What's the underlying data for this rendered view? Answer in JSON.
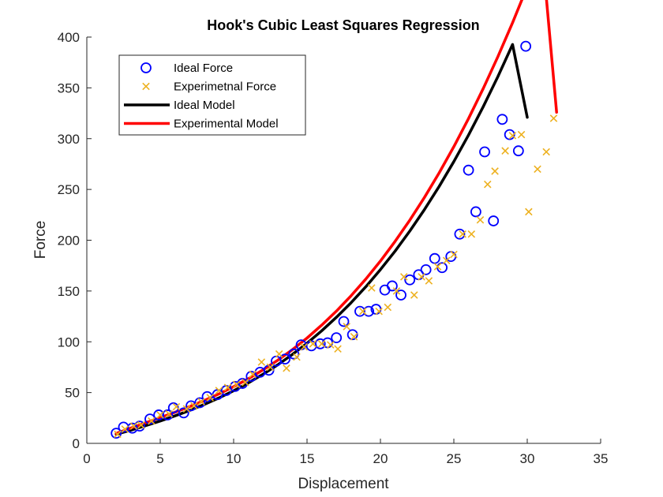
{
  "chart_data": {
    "type": "scatter",
    "title": "Hook's Cubic Least Squares Regression",
    "xlabel": "Displacement",
    "ylabel": "Force",
    "xlim": [
      0,
      35
    ],
    "ylim": [
      0,
      400
    ],
    "xticks": [
      0,
      5,
      10,
      15,
      20,
      25,
      30,
      35
    ],
    "yticks": [
      0,
      50,
      100,
      150,
      200,
      250,
      300,
      350,
      400
    ],
    "grid": false,
    "legend_position": "top-left",
    "series": [
      {
        "name": "Ideal Force",
        "kind": "markers",
        "marker": "circle",
        "color": "#0000ff",
        "x": [
          2.0,
          2.5,
          3.1,
          3.6,
          4.3,
          4.9,
          5.5,
          5.9,
          6.6,
          7.1,
          7.7,
          8.2,
          8.9,
          9.5,
          10.1,
          10.6,
          11.2,
          11.8,
          12.4,
          12.9,
          13.5,
          14.1,
          14.6,
          15.3,
          15.9,
          16.4,
          17.0,
          17.5,
          18.1,
          18.6,
          19.2,
          19.7,
          20.3,
          20.8,
          21.4,
          22.0,
          22.6,
          23.1,
          23.7,
          24.2,
          24.8,
          25.4,
          26.0,
          26.5,
          27.1,
          27.7,
          28.3,
          28.8,
          29.4,
          29.9
        ],
        "y": [
          10,
          16,
          15,
          17,
          24,
          28,
          28,
          35,
          30,
          37,
          40,
          46,
          48,
          52,
          56,
          59,
          66,
          70,
          72,
          81,
          83,
          88,
          97,
          96,
          98,
          99,
          104,
          120,
          107,
          130,
          130,
          132,
          151,
          155,
          146,
          161,
          166,
          171,
          182,
          173,
          184,
          206,
          269,
          228,
          287,
          219,
          319,
          304,
          288,
          391
        ]
      },
      {
        "name": "Experimetnal Force",
        "kind": "markers",
        "marker": "x",
        "color": "#edb120",
        "x": [
          2.1,
          2.6,
          3.2,
          3.7,
          4.4,
          5.0,
          5.6,
          6.1,
          6.8,
          7.3,
          7.8,
          8.4,
          9.0,
          9.6,
          10.2,
          10.8,
          11.3,
          11.9,
          12.5,
          13.1,
          13.6,
          14.3,
          14.8,
          15.4,
          16.0,
          16.6,
          17.1,
          17.7,
          18.2,
          18.8,
          19.4,
          19.9,
          20.5,
          21.1,
          21.6,
          22.3,
          22.8,
          23.3,
          23.9,
          24.5,
          25.0,
          25.6,
          26.2,
          26.8,
          27.3,
          27.8,
          28.5,
          29.0,
          29.6,
          30.1,
          30.7,
          31.3,
          31.8
        ],
        "y": [
          9,
          14,
          17,
          18,
          22,
          28,
          29,
          36,
          34,
          37,
          41,
          45,
          52,
          55,
          58,
          60,
          68,
          80,
          75,
          88,
          74,
          85,
          95,
          98,
          98,
          97,
          93,
          115,
          105,
          130,
          153,
          130,
          134,
          150,
          164,
          146,
          164,
          160,
          174,
          180,
          186,
          206,
          206,
          220,
          255,
          268,
          288,
          303,
          304,
          228,
          270,
          287,
          320
        ]
      },
      {
        "name": "Ideal Model",
        "kind": "line",
        "color": "#000000",
        "x": [
          2,
          3,
          4,
          5,
          6,
          7,
          8,
          9,
          10,
          11,
          12,
          13,
          14,
          15,
          16,
          17,
          18,
          19,
          20,
          21,
          22,
          23,
          24,
          25,
          26,
          27,
          28,
          29,
          30
        ],
        "y": [
          8.9,
          13.0,
          17.4,
          22.0,
          27.0,
          32.4,
          38.3,
          44.7,
          51.8,
          59.5,
          68.0,
          77.3,
          87.5,
          98.6,
          110.8,
          124.1,
          138.5,
          154.1,
          171.1,
          189.3,
          209.0,
          230.2,
          253.0,
          277.4,
          303.5,
          331.4,
          361.1,
          392.7,
          321
        ]
      },
      {
        "name": "Experimental Model",
        "kind": "line",
        "color": "#ff0000",
        "x": [
          2,
          3,
          4,
          5,
          6,
          7,
          8,
          9,
          10,
          11,
          12,
          13,
          14,
          15,
          16,
          17,
          18,
          19,
          20,
          21,
          22,
          23,
          24,
          25,
          26,
          27,
          28,
          29,
          30,
          31,
          32
        ],
        "y": [
          9.8,
          15.1,
          20.2,
          25.3,
          30.6,
          36.2,
          42.2,
          48.7,
          55.8,
          63.6,
          72.3,
          81.8,
          92.2,
          103.7,
          116.4,
          130.2,
          145.3,
          161.7,
          179.5,
          198.9,
          219.7,
          242.2,
          266.3,
          292.1,
          319.8,
          349.3,
          380.7,
          414.1,
          449.6,
          487.1,
          326
        ]
      }
    ]
  }
}
